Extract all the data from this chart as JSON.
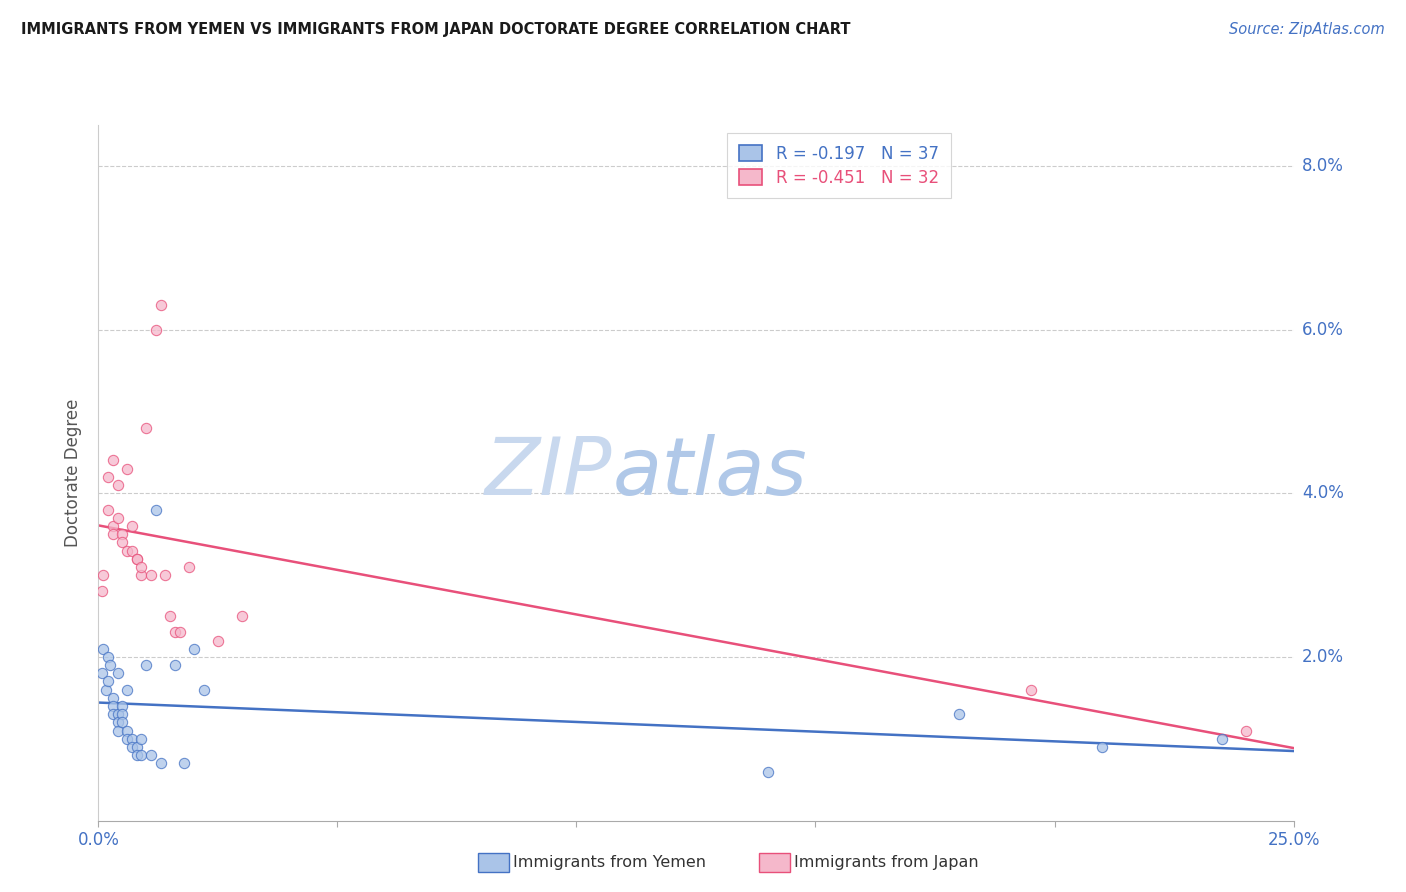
{
  "title": "IMMIGRANTS FROM YEMEN VS IMMIGRANTS FROM JAPAN DOCTORATE DEGREE CORRELATION CHART",
  "source": "Source: ZipAtlas.com",
  "ylabel": "Doctorate Degree",
  "ylabel_right_ticks": [
    "2.0%",
    "4.0%",
    "6.0%",
    "8.0%"
  ],
  "ylabel_right_vals": [
    0.02,
    0.04,
    0.06,
    0.08
  ],
  "xlim": [
    0.0,
    0.25
  ],
  "ylim": [
    0.0,
    0.085
  ],
  "color_yemen": "#aac4e8",
  "color_japan": "#f5b8cb",
  "color_line_yemen": "#4472c4",
  "color_line_japan": "#e8507a",
  "watermark_zip": "ZIP",
  "watermark_atlas": "atlas",
  "yemen_x": [
    0.0008,
    0.001,
    0.0015,
    0.002,
    0.002,
    0.0025,
    0.003,
    0.003,
    0.003,
    0.004,
    0.004,
    0.004,
    0.004,
    0.005,
    0.005,
    0.005,
    0.006,
    0.006,
    0.006,
    0.007,
    0.007,
    0.008,
    0.008,
    0.009,
    0.009,
    0.01,
    0.011,
    0.012,
    0.013,
    0.016,
    0.018,
    0.02,
    0.022,
    0.14,
    0.18,
    0.21,
    0.235
  ],
  "yemen_y": [
    0.018,
    0.021,
    0.016,
    0.02,
    0.017,
    0.019,
    0.015,
    0.014,
    0.013,
    0.013,
    0.012,
    0.011,
    0.018,
    0.014,
    0.013,
    0.012,
    0.011,
    0.01,
    0.016,
    0.01,
    0.009,
    0.009,
    0.008,
    0.01,
    0.008,
    0.019,
    0.008,
    0.038,
    0.007,
    0.019,
    0.007,
    0.021,
    0.016,
    0.006,
    0.013,
    0.009,
    0.01
  ],
  "japan_x": [
    0.0008,
    0.001,
    0.002,
    0.002,
    0.003,
    0.003,
    0.003,
    0.004,
    0.004,
    0.005,
    0.005,
    0.006,
    0.006,
    0.007,
    0.007,
    0.008,
    0.008,
    0.009,
    0.009,
    0.01,
    0.011,
    0.012,
    0.013,
    0.014,
    0.015,
    0.016,
    0.017,
    0.019,
    0.025,
    0.03,
    0.195,
    0.24
  ],
  "japan_y": [
    0.028,
    0.03,
    0.042,
    0.038,
    0.044,
    0.036,
    0.035,
    0.041,
    0.037,
    0.035,
    0.034,
    0.033,
    0.043,
    0.033,
    0.036,
    0.032,
    0.032,
    0.03,
    0.031,
    0.048,
    0.03,
    0.06,
    0.063,
    0.03,
    0.025,
    0.023,
    0.023,
    0.031,
    0.022,
    0.025,
    0.016,
    0.011
  ],
  "background_color": "#ffffff",
  "grid_color": "#cccccc"
}
